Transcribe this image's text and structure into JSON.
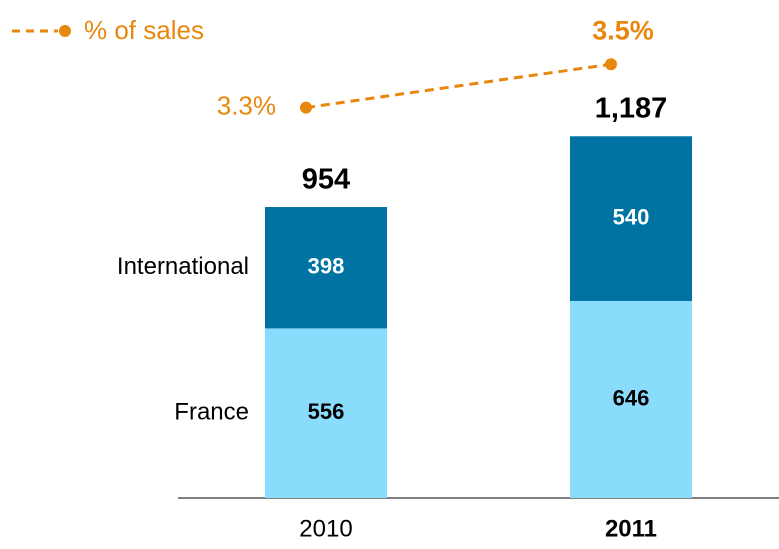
{
  "chart_data": {
    "type": "stacked_bar_line",
    "categories": [
      "2010",
      "2011"
    ],
    "series": [
      {
        "name": "France",
        "color": "#8adcfc",
        "values": [
          556,
          646
        ]
      },
      {
        "name": "International",
        "color": "#0073a3",
        "values": [
          398,
          540
        ]
      }
    ],
    "totals": {
      "values": [
        954,
        1187
      ],
      "value_labels": [
        "954",
        "1,187"
      ]
    },
    "line": {
      "name": "% of sales",
      "color": "#e8870e",
      "axis": "y2",
      "values": [
        3.3,
        3.5
      ],
      "value_labels": [
        "3.3%",
        "3.5%"
      ]
    },
    "ylim": [
      0,
      1600
    ],
    "y2lim": [
      1.5,
      3.75
    ]
  }
}
